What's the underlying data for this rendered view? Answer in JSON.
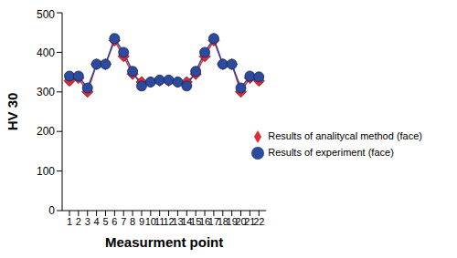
{
  "chart_data": {
    "type": "line",
    "x_label": "Measurment point",
    "y_label": "HV 30",
    "categories": [
      "1",
      "2",
      "3",
      "4",
      "5",
      "6",
      "7",
      "8",
      "9",
      "10",
      "11",
      "12",
      "13",
      "14",
      "15",
      "16",
      "17",
      "18",
      "19",
      "20",
      "21",
      "22"
    ],
    "series": [
      {
        "name": "Results of analitycal method (face)",
        "color": "#e02a36",
        "marker": "diamond",
        "values": [
          328,
          335,
          300,
          370,
          370,
          430,
          390,
          345,
          325,
          325,
          328,
          328,
          325,
          325,
          345,
          390,
          430,
          370,
          370,
          300,
          335,
          328
        ]
      },
      {
        "name": "Results of experiment (face)",
        "color": "#2c4a9e",
        "marker": "circle",
        "values": [
          340,
          340,
          310,
          370,
          370,
          435,
          400,
          352,
          315,
          325,
          330,
          330,
          325,
          315,
          352,
          400,
          435,
          370,
          370,
          310,
          340,
          338
        ]
      }
    ],
    "ylim": [
      0,
      500
    ],
    "yticks": [
      0,
      100,
      200,
      300,
      400,
      500
    ],
    "grid": false,
    "legend": "center right"
  }
}
